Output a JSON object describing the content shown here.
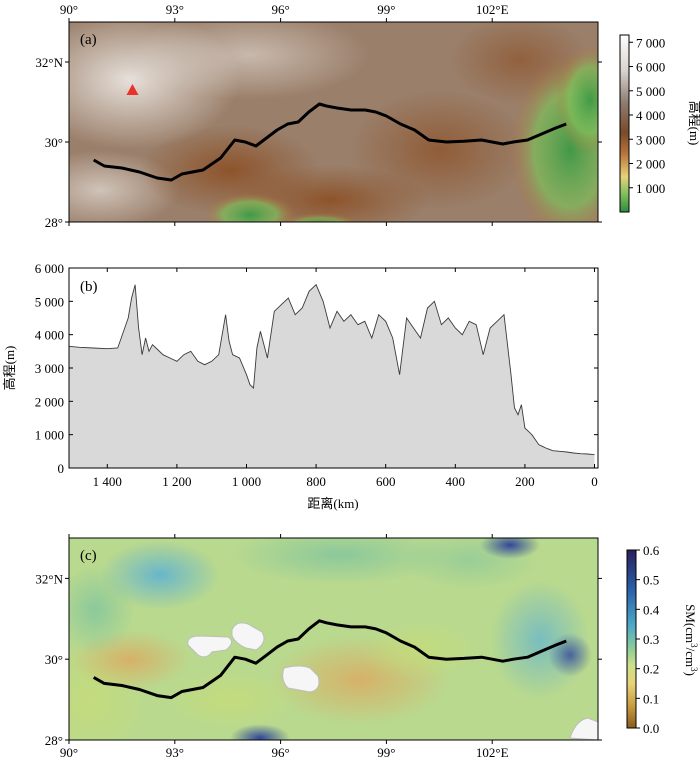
{
  "chart_data": [
    {
      "id": "a",
      "type": "heatmap",
      "panel_label": "(a)",
      "x_ticks": [
        "90°",
        "93°",
        "96°",
        "99°",
        "102°E"
      ],
      "x_tick_values": [
        90,
        93,
        96,
        99,
        102
      ],
      "x_tick_position": "top",
      "xlim": [
        90,
        105
      ],
      "y_ticks": [
        "32°N",
        "30°",
        "28°"
      ],
      "y_tick_values": [
        32,
        30,
        28
      ],
      "ylim": [
        28,
        33
      ],
      "colorbar": {
        "label": "高程(m)",
        "ticks": [
          "7 000",
          "6 000",
          "5 000",
          "4 000",
          "3 000",
          "2 000",
          "1 000"
        ],
        "tick_values": [
          7000,
          6000,
          5000,
          4000,
          3000,
          2000,
          1000
        ],
        "range": [
          0,
          7300
        ],
        "colors": [
          "#2e8b3e",
          "#7fbf5a",
          "#e8d27a",
          "#b8743a",
          "#7a4a2a",
          "#8f7d70",
          "#d9d4d0",
          "#ffffff"
        ]
      },
      "marker": {
        "shape": "triangle",
        "color": "#e8322a",
        "lon": 91.8,
        "lat": 31.3
      },
      "route": {
        "lon": [
          90.7,
          91.0,
          91.5,
          92.0,
          92.5,
          92.9,
          93.2,
          93.8,
          94.3,
          94.7,
          95.0,
          95.3,
          95.6,
          95.9,
          96.2,
          96.5,
          96.8,
          97.1,
          97.3,
          97.6,
          98.0,
          98.4,
          98.7,
          99.0,
          99.4,
          99.8,
          100.2,
          100.7,
          101.2,
          101.7,
          102.0,
          102.3,
          102.6,
          103.0,
          103.4,
          103.8,
          104.1
        ],
        "lat": [
          29.55,
          29.4,
          29.35,
          29.25,
          29.1,
          29.05,
          29.2,
          29.3,
          29.6,
          30.05,
          30.0,
          29.9,
          30.1,
          30.3,
          30.45,
          30.5,
          30.75,
          30.95,
          30.9,
          30.85,
          30.8,
          30.8,
          30.75,
          30.65,
          30.45,
          30.3,
          30.05,
          30.0,
          30.02,
          30.05,
          30.0,
          29.95,
          30.0,
          30.05,
          30.2,
          30.35,
          30.45
        ]
      }
    },
    {
      "id": "b",
      "type": "area",
      "panel_label": "(b)",
      "xlabel": "距离(km)",
      "ylabel": "高程(m)",
      "xlim": [
        1510,
        -10
      ],
      "ylim": [
        0,
        6000
      ],
      "x_ticks": [
        "1 400",
        "1 200",
        "1 000",
        "800",
        "600",
        "400",
        "200",
        "0"
      ],
      "x_tick_values": [
        1400,
        1200,
        1000,
        800,
        600,
        400,
        200,
        0
      ],
      "y_ticks": [
        "6 000",
        "5 000",
        "4 000",
        "3 000",
        "2 000",
        "1 000",
        "0"
      ],
      "y_tick_values": [
        6000,
        5000,
        4000,
        3000,
        2000,
        1000,
        0
      ],
      "x": [
        1510,
        1480,
        1440,
        1400,
        1370,
        1340,
        1330,
        1320,
        1310,
        1300,
        1290,
        1280,
        1270,
        1260,
        1240,
        1220,
        1200,
        1180,
        1160,
        1140,
        1120,
        1100,
        1080,
        1060,
        1050,
        1040,
        1020,
        1000,
        990,
        980,
        970,
        960,
        940,
        920,
        900,
        880,
        860,
        840,
        820,
        800,
        780,
        760,
        740,
        720,
        700,
        680,
        660,
        640,
        620,
        600,
        580,
        560,
        540,
        520,
        500,
        480,
        460,
        440,
        420,
        400,
        380,
        360,
        340,
        320,
        300,
        280,
        260,
        250,
        240,
        230,
        220,
        210,
        200,
        190,
        180,
        170,
        160,
        150,
        140,
        130,
        120,
        100,
        80,
        60,
        40,
        20,
        0
      ],
      "values": [
        3650,
        3620,
        3600,
        3580,
        3600,
        4500,
        5100,
        5500,
        4200,
        3400,
        3900,
        3500,
        3700,
        3600,
        3400,
        3300,
        3200,
        3400,
        3500,
        3200,
        3100,
        3200,
        3400,
        4600,
        3800,
        3400,
        3300,
        2800,
        2500,
        2400,
        3600,
        4100,
        3300,
        4700,
        4900,
        5100,
        4600,
        4800,
        5300,
        5500,
        5000,
        4200,
        4700,
        4400,
        4600,
        4300,
        4400,
        3900,
        4600,
        4400,
        3900,
        2800,
        4500,
        4200,
        3900,
        4800,
        5000,
        4300,
        4500,
        4200,
        4000,
        4400,
        4300,
        3400,
        4200,
        4400,
        4600,
        3700,
        2800,
        1800,
        1600,
        1900,
        1200,
        1100,
        1000,
        850,
        700,
        650,
        600,
        560,
        520,
        500,
        480,
        450,
        430,
        420,
        400
      ],
      "fill": "#d9d9d9",
      "line": "#3a3a3a"
    },
    {
      "id": "c",
      "type": "heatmap",
      "panel_label": "(c)",
      "x_ticks": [
        "90°",
        "93°",
        "96°",
        "99°",
        "102°E"
      ],
      "x_tick_values": [
        90,
        93,
        96,
        99,
        102
      ],
      "xlim": [
        90,
        105
      ],
      "y_ticks": [
        "32°N",
        "30°",
        "28°"
      ],
      "y_tick_values": [
        32,
        30,
        28
      ],
      "ylim": [
        28,
        33
      ],
      "colorbar": {
        "label_main": "SM(cm",
        "label_sup1": "3",
        "label_mid": "/cm",
        "label_sup2": "3",
        "label_end": ")",
        "ticks": [
          "0.6",
          "0.5",
          "0.4",
          "0.3",
          "0.2",
          "0.1",
          "0.0"
        ],
        "tick_values": [
          0.6,
          0.5,
          0.4,
          0.3,
          0.2,
          0.1,
          0.0
        ],
        "range": [
          0,
          0.6
        ],
        "colors": [
          "#8a5a1c",
          "#c79a3e",
          "#e8d27a",
          "#cfe08a",
          "#8ccb9a",
          "#4aa8c8",
          "#2a5fa8",
          "#2a1e5c"
        ]
      },
      "route_same_as_panel": "a"
    }
  ]
}
